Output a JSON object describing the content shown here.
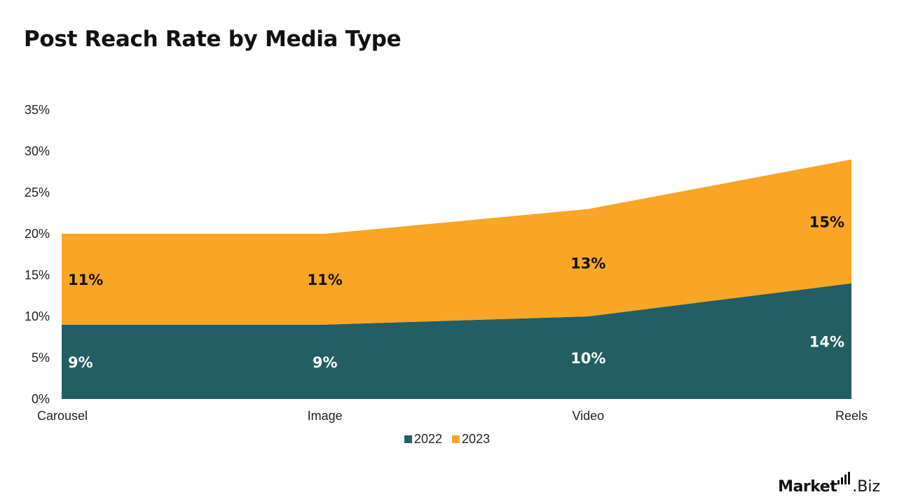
{
  "chart_data": {
    "type": "area",
    "stacked": true,
    "title": "Post Reach Rate by Media Type",
    "categories": [
      "Carousel",
      "Image",
      "Video",
      "Reels"
    ],
    "series": [
      {
        "name": "2022",
        "values": [
          9,
          9,
          10,
          14
        ],
        "labels": [
          "9%",
          "9%",
          "10%",
          "14%"
        ],
        "color": "#225e63"
      },
      {
        "name": "2023",
        "values": [
          11,
          11,
          13,
          15
        ],
        "labels": [
          "11%",
          "11%",
          "13%",
          "15%"
        ],
        "color": "#f9a526"
      }
    ],
    "ylim": [
      0,
      35
    ],
    "yticks": [
      "0%",
      "5%",
      "10%",
      "15%",
      "20%",
      "25%",
      "30%",
      "35%"
    ],
    "ytick_values": [
      0,
      5,
      10,
      15,
      20,
      25,
      30,
      35
    ],
    "grid": false,
    "legend_position": "bottom-center"
  },
  "brand": {
    "name_strong": "Market",
    "name_light": ".Biz"
  }
}
